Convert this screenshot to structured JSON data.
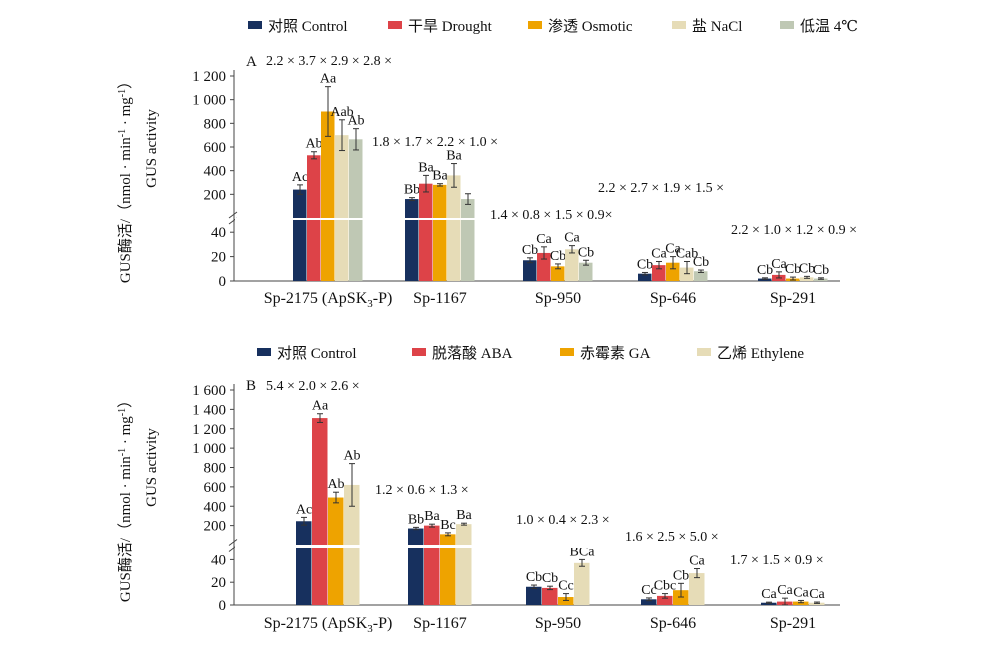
{
  "chart_data": [
    {
      "panel": "A",
      "type": "bar",
      "categories": [
        "Sp-2175 (ApSK3-P)",
        "Sp-1167",
        "Sp-950",
        "Sp-646",
        "Sp-291"
      ],
      "category_display": [
        {
          "main": "Sp-2175 (ApSK",
          "sub": "3",
          "tail": "-P)"
        },
        {
          "main": "Sp-1167",
          "sub": "",
          "tail": ""
        },
        {
          "main": "Sp-950",
          "sub": "",
          "tail": ""
        },
        {
          "main": "Sp-646",
          "sub": "",
          "tail": ""
        },
        {
          "main": "Sp-291",
          "sub": "",
          "tail": ""
        }
      ],
      "ylabel_cn": "GUS酶活/（nmol · min",
      "ylabel_en": "GUS activity",
      "y_axis_break": {
        "lower": [
          0,
          50
        ],
        "upper": [
          0,
          1200
        ]
      },
      "yticks_lower": [
        "0",
        "20",
        "40"
      ],
      "yticks_upper": [
        "200",
        "400",
        "600",
        "800",
        "1 000",
        "1 200"
      ],
      "series": [
        {
          "name": "对照 Control",
          "color": "#17305e",
          "values": [
            240,
            160,
            17,
            6,
            2
          ],
          "errors": [
            40,
            12,
            2,
            1,
            0.6
          ],
          "labels": [
            "Ac",
            "Bb",
            "Cb",
            "Cb",
            "Cb"
          ]
        },
        {
          "name": "干旱 Drought",
          "color": "#dd4348",
          "values": [
            530,
            290,
            23,
            13,
            5
          ],
          "errors": [
            30,
            70,
            5,
            3,
            2.5
          ],
          "labels": [
            "Ab",
            "Ba",
            "Ca",
            "Ca",
            "Ca"
          ]
        },
        {
          "name": "渗透 Osmotic",
          "color": "#eea300",
          "values": [
            900,
            280,
            12,
            15,
            2
          ],
          "errors": [
            210,
            10,
            2,
            5,
            1.2
          ],
          "labels": [
            "Aa",
            "Ba",
            "Cb",
            "Ca",
            "Cb"
          ]
        },
        {
          "name": "盐 NaCl",
          "color": "#e6dcb7",
          "values": [
            700,
            360,
            26,
            11,
            3
          ],
          "errors": [
            130,
            100,
            3,
            5,
            0.8
          ],
          "labels": [
            "Aab",
            "Ba",
            "Ca",
            "Cab",
            "Cb"
          ]
        },
        {
          "name": "低温 4℃",
          "color": "#bfc8b4",
          "values": [
            665,
            160,
            15,
            8,
            2
          ],
          "errors": [
            90,
            45,
            2,
            1,
            0.6
          ],
          "labels": [
            "Ab",
            "",
            "Cb",
            "Cb",
            "Cb"
          ]
        }
      ],
      "ratios": [
        "2.2 × 3.7 × 2.9 × 2.8 ×",
        "1.8 × 1.7 × 2.2 × 1.0 ×",
        "1.4 × 0.8 × 1.5 × 0.9×",
        "2.2 × 2.7 × 1.9 × 1.5 ×",
        "2.2 × 1.0 × 1.2 × 0.9 ×"
      ]
    },
    {
      "panel": "B",
      "type": "bar",
      "categories": [
        "Sp-2175 (ApSK3-P)",
        "Sp-1167",
        "Sp-950",
        "Sp-646",
        "Sp-291"
      ],
      "category_display": [
        {
          "main": "Sp-2175 (ApSK",
          "sub": "3",
          "tail": "-P)"
        },
        {
          "main": "Sp-1167",
          "sub": "",
          "tail": ""
        },
        {
          "main": "Sp-950",
          "sub": "",
          "tail": ""
        },
        {
          "main": "Sp-646",
          "sub": "",
          "tail": ""
        },
        {
          "main": "Sp-291",
          "sub": "",
          "tail": ""
        }
      ],
      "ylabel_cn": "GUS酶活/（nmol · min",
      "ylabel_en": "GUS activity",
      "y_axis_break": {
        "lower": [
          0,
          50
        ],
        "upper": [
          0,
          1600
        ]
      },
      "yticks_lower": [
        "0",
        "20",
        "40"
      ],
      "yticks_upper": [
        "200",
        "400",
        "600",
        "800",
        "1 000",
        "1 200",
        "1 400",
        "1 600"
      ],
      "series": [
        {
          "name": "对照 Control",
          "color": "#17305e",
          "values": [
            245,
            170,
            16,
            5,
            2
          ],
          "errors": [
            40,
            12,
            1.5,
            1.2,
            0.5
          ],
          "labels": [
            "Ac",
            "Bb",
            "Cb",
            "Cc",
            "Ca"
          ]
        },
        {
          "name": "脱落酸 ABA",
          "color": "#dd4348",
          "values": [
            1310,
            200,
            15,
            8,
            3
          ],
          "errors": [
            45,
            15,
            1.5,
            2,
            3
          ],
          "labels": [
            "Aa",
            "Ba",
            "Cb",
            "Cbc",
            "Ca"
          ]
        },
        {
          "name": "赤霉素 GA",
          "color": "#eea300",
          "values": [
            490,
            110,
            7,
            13,
            3
          ],
          "errors": [
            55,
            15,
            3,
            6,
            1
          ],
          "labels": [
            "Ab",
            "Bc",
            "Cc",
            "Cb",
            "Ca"
          ]
        },
        {
          "name": "乙烯 Ethylene",
          "color": "#e6dcb7",
          "values": [
            620,
            215,
            37,
            28,
            2
          ],
          "errors": [
            220,
            10,
            3,
            4,
            0.6
          ],
          "labels": [
            "Ab",
            "Ba",
            "BCa",
            "Ca",
            "Ca"
          ]
        }
      ],
      "ratios": [
        "5.4 × 2.0 × 2.6 ×",
        "1.2 × 0.6 × 1.3 ×",
        "1.0 × 0.4 × 2.3 ×",
        "1.6 × 2.5 × 5.0 ×",
        "1.7 × 1.5 × 0.9 ×"
      ]
    }
  ]
}
